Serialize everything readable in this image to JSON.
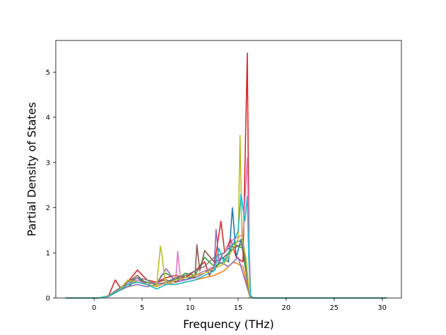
{
  "chart_data": {
    "type": "line",
    "title": "",
    "xlabel": "Frequency (THz)",
    "ylabel": "Partial Density of States",
    "xlim": [
      -4.0,
      32.0
    ],
    "ylim": [
      0,
      5.7
    ],
    "x_ticks": [
      0,
      5,
      10,
      15,
      20,
      25,
      30
    ],
    "x_tick_labels": [
      "0",
      "5",
      "10",
      "15",
      "20",
      "25",
      "30"
    ],
    "y_ticks": [
      0,
      1,
      2,
      3,
      4,
      5
    ],
    "y_tick_labels": [
      "0",
      "1",
      "2",
      "3",
      "4",
      "5"
    ],
    "grid": false,
    "legend": "none",
    "series": [
      {
        "color": "#1f77b4",
        "x": [
          -3,
          0.5,
          1.5,
          2.5,
          3.5,
          4.5,
          5.5,
          6.5,
          7.5,
          8.5,
          9.5,
          10.5,
          11.5,
          12.5,
          13.3,
          14.0,
          14.4,
          14.8,
          15.3,
          15.8,
          16.2,
          16.6,
          20,
          30.5
        ],
        "y": [
          0,
          0,
          0.05,
          0.2,
          0.3,
          0.45,
          0.3,
          0.35,
          0.3,
          0.45,
          0.4,
          0.5,
          0.6,
          0.6,
          0.9,
          0.8,
          2.0,
          0.9,
          1.3,
          0.6,
          0.02,
          0,
          0,
          0
        ]
      },
      {
        "color": "#ff7f0e",
        "x": [
          -3,
          0.5,
          1.5,
          2.5,
          3.5,
          4.5,
          5.5,
          6.5,
          7.5,
          8.5,
          9.5,
          10.5,
          11.5,
          12.5,
          13.5,
          14.5,
          15.5,
          16.2,
          16.6,
          30.5
        ],
        "y": [
          0,
          0,
          0.04,
          0.15,
          0.3,
          0.35,
          0.3,
          0.25,
          0.35,
          0.3,
          0.35,
          0.4,
          0.45,
          0.5,
          0.6,
          0.8,
          0.7,
          0.02,
          0,
          0
        ]
      },
      {
        "color": "#2ca02c",
        "x": [
          -3,
          0.5,
          1.5,
          2.5,
          3.5,
          4.5,
          5.5,
          6.5,
          7.0,
          7.5,
          8.5,
          9.5,
          10.5,
          11.5,
          12.5,
          13.5,
          14.5,
          15.5,
          16.2,
          16.6,
          30.5
        ],
        "y": [
          0,
          0,
          0.05,
          0.18,
          0.25,
          0.4,
          0.35,
          0.3,
          0.5,
          0.55,
          0.4,
          0.55,
          0.5,
          0.9,
          0.7,
          0.8,
          1.2,
          1.1,
          0.05,
          0,
          0
        ]
      },
      {
        "color": "#d62728",
        "x": [
          -3,
          0.5,
          1.5,
          2.2,
          2.8,
          3.5,
          4.5,
          5.5,
          6.5,
          7.5,
          8.5,
          9.5,
          10.5,
          11.5,
          12.0,
          12.5,
          13.2,
          13.6,
          14.2,
          14.8,
          15.5,
          15.95,
          16.05,
          16.15,
          16.3,
          16.6,
          30.5
        ],
        "y": [
          0,
          0,
          0.05,
          0.4,
          0.2,
          0.35,
          0.62,
          0.4,
          0.35,
          0.45,
          0.5,
          0.45,
          0.6,
          0.8,
          0.5,
          0.7,
          1.7,
          1.0,
          1.3,
          0.9,
          0.8,
          5.42,
          3.1,
          1.0,
          0.05,
          0,
          0
        ]
      },
      {
        "color": "#9467bd",
        "x": [
          -3,
          0.5,
          1.5,
          2.5,
          3.5,
          4.5,
          5.5,
          6.5,
          7.5,
          8.5,
          9.5,
          10.5,
          11.5,
          12.5,
          12.7,
          13.0,
          14.0,
          15.0,
          16.2,
          16.6,
          30.5
        ],
        "y": [
          0,
          0,
          0.03,
          0.15,
          0.25,
          0.3,
          0.25,
          0.3,
          0.65,
          0.35,
          0.4,
          0.45,
          0.55,
          0.7,
          1.52,
          0.8,
          0.7,
          0.9,
          0.05,
          0,
          0
        ]
      },
      {
        "color": "#8c564b",
        "x": [
          -3,
          0.5,
          1.5,
          2.5,
          3.5,
          4.5,
          5.5,
          6.5,
          7.5,
          8.5,
          9.5,
          10.5,
          10.7,
          11.0,
          11.5,
          12.5,
          13.5,
          14.5,
          15.5,
          16.2,
          16.6,
          30.5
        ],
        "y": [
          0,
          0,
          0.04,
          0.2,
          0.35,
          0.5,
          0.3,
          0.35,
          0.4,
          0.35,
          0.5,
          0.45,
          1.18,
          0.6,
          1.05,
          0.8,
          0.9,
          1.1,
          1.2,
          0.04,
          0,
          0
        ]
      },
      {
        "color": "#e377c2",
        "x": [
          -3,
          0.5,
          1.5,
          2.5,
          3.5,
          4.5,
          5.5,
          6.5,
          7.5,
          8.5,
          8.7,
          9.0,
          9.5,
          10.5,
          11.5,
          12.5,
          13.5,
          14.5,
          15.5,
          15.95,
          16.1,
          16.3,
          16.6,
          30.5
        ],
        "y": [
          0,
          0,
          0.03,
          0.18,
          0.3,
          0.4,
          0.3,
          0.35,
          0.3,
          0.4,
          1.03,
          0.4,
          0.45,
          0.5,
          0.6,
          0.7,
          1.0,
          1.3,
          1.4,
          3.1,
          1.5,
          0.04,
          0,
          0
        ]
      },
      {
        "color": "#7f7f7f",
        "x": [
          -3,
          0.5,
          1.5,
          2.5,
          3.5,
          4.5,
          5.5,
          6.5,
          7.5,
          8.5,
          9.5,
          10.5,
          11.5,
          12.5,
          13.5,
          14.5,
          15.5,
          16.2,
          16.6,
          30.5
        ],
        "y": [
          0,
          0,
          0.04,
          0.2,
          0.35,
          0.45,
          0.4,
          0.3,
          0.35,
          0.45,
          0.5,
          0.6,
          0.7,
          0.9,
          1.0,
          1.2,
          1.3,
          0.05,
          0,
          0
        ]
      },
      {
        "color": "#bcbd22",
        "x": [
          -3,
          0.5,
          1.5,
          2.5,
          3.5,
          4.5,
          5.5,
          6.5,
          6.9,
          7.1,
          7.4,
          8.5,
          9.5,
          10.5,
          11.5,
          12.5,
          13.5,
          14.5,
          15.0,
          15.2,
          15.4,
          15.8,
          16.2,
          16.6,
          30.5
        ],
        "y": [
          0,
          0,
          0.05,
          0.15,
          0.4,
          0.35,
          0.3,
          0.25,
          1.15,
          0.9,
          0.3,
          0.4,
          0.45,
          0.5,
          0.55,
          0.65,
          0.75,
          1.1,
          1.3,
          3.6,
          1.3,
          0.9,
          0.04,
          0,
          0
        ]
      },
      {
        "color": "#17becf",
        "x": [
          -3,
          0.5,
          1.5,
          2.5,
          3.5,
          4.5,
          5.5,
          6.5,
          7.5,
          8.5,
          9.5,
          10.5,
          11.5,
          12.5,
          13.0,
          13.5,
          14.5,
          15.0,
          15.3,
          15.7,
          15.95,
          16.1,
          16.3,
          16.6,
          30.5
        ],
        "y": [
          0,
          0,
          0.04,
          0.15,
          0.3,
          0.35,
          0.3,
          0.2,
          0.3,
          0.3,
          0.35,
          0.4,
          0.5,
          0.6,
          1.1,
          0.8,
          1.2,
          1.5,
          2.3,
          1.7,
          2.25,
          0.9,
          0.04,
          0,
          0
        ]
      }
    ]
  }
}
